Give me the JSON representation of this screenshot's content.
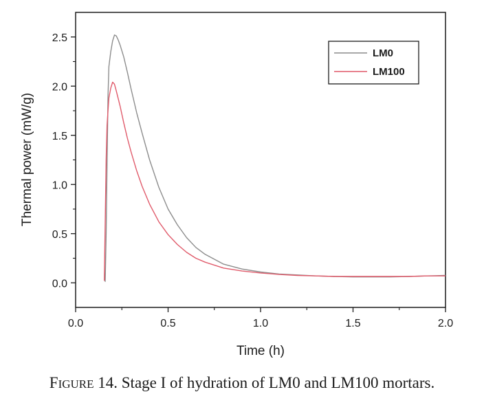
{
  "chart_data": {
    "type": "line",
    "xlabel": "Time (h)",
    "ylabel": "Thermal power (mW/g)",
    "xlim": [
      0,
      2.0
    ],
    "ylim": [
      -0.25,
      2.75
    ],
    "xticks": [
      "0.0",
      "0.5",
      "1.0",
      "1.5",
      "2.0"
    ],
    "yticks": [
      "0.0",
      "0.5",
      "1.0",
      "1.5",
      "2.0",
      "2.5"
    ],
    "grid": false,
    "legend_position": "top-right",
    "series": [
      {
        "name": "LM0",
        "color": "#8c8c8c",
        "x": [
          0.16,
          0.165,
          0.17,
          0.175,
          0.18,
          0.19,
          0.2,
          0.21,
          0.22,
          0.23,
          0.24,
          0.26,
          0.28,
          0.3,
          0.33,
          0.36,
          0.4,
          0.45,
          0.5,
          0.55,
          0.6,
          0.65,
          0.7,
          0.8,
          0.9,
          1.0,
          1.1,
          1.2,
          1.3,
          1.4,
          1.5,
          1.6,
          1.7,
          1.8,
          1.9,
          2.0
        ],
        "y": [
          0.01,
          0.5,
          1.2,
          1.9,
          2.2,
          2.35,
          2.46,
          2.52,
          2.51,
          2.47,
          2.42,
          2.3,
          2.14,
          1.97,
          1.73,
          1.52,
          1.25,
          0.97,
          0.75,
          0.59,
          0.46,
          0.36,
          0.29,
          0.19,
          0.14,
          0.11,
          0.09,
          0.08,
          0.07,
          0.065,
          0.06,
          0.06,
          0.06,
          0.065,
          0.07,
          0.075
        ]
      },
      {
        "name": "LM100",
        "color": "#e05a6a",
        "x": [
          0.155,
          0.16,
          0.165,
          0.17,
          0.175,
          0.18,
          0.19,
          0.2,
          0.21,
          0.22,
          0.24,
          0.26,
          0.28,
          0.3,
          0.33,
          0.36,
          0.4,
          0.45,
          0.5,
          0.55,
          0.6,
          0.65,
          0.7,
          0.8,
          0.9,
          1.0,
          1.1,
          1.2,
          1.3,
          1.4,
          1.5,
          1.6,
          1.7,
          1.8,
          1.9,
          2.0
        ],
        "y": [
          0.02,
          0.6,
          1.25,
          1.6,
          1.75,
          1.88,
          1.98,
          2.04,
          2.02,
          1.95,
          1.8,
          1.63,
          1.47,
          1.33,
          1.14,
          0.98,
          0.8,
          0.62,
          0.49,
          0.39,
          0.31,
          0.25,
          0.21,
          0.15,
          0.12,
          0.1,
          0.085,
          0.075,
          0.07,
          0.065,
          0.065,
          0.065,
          0.065,
          0.065,
          0.07,
          0.07
        ]
      }
    ]
  },
  "caption": {
    "figure_label_first": "F",
    "figure_label_rest": "IGURE",
    "figure_number": "14.",
    "text": "Stage I of hydration of LM0 and LM100 mortars."
  }
}
